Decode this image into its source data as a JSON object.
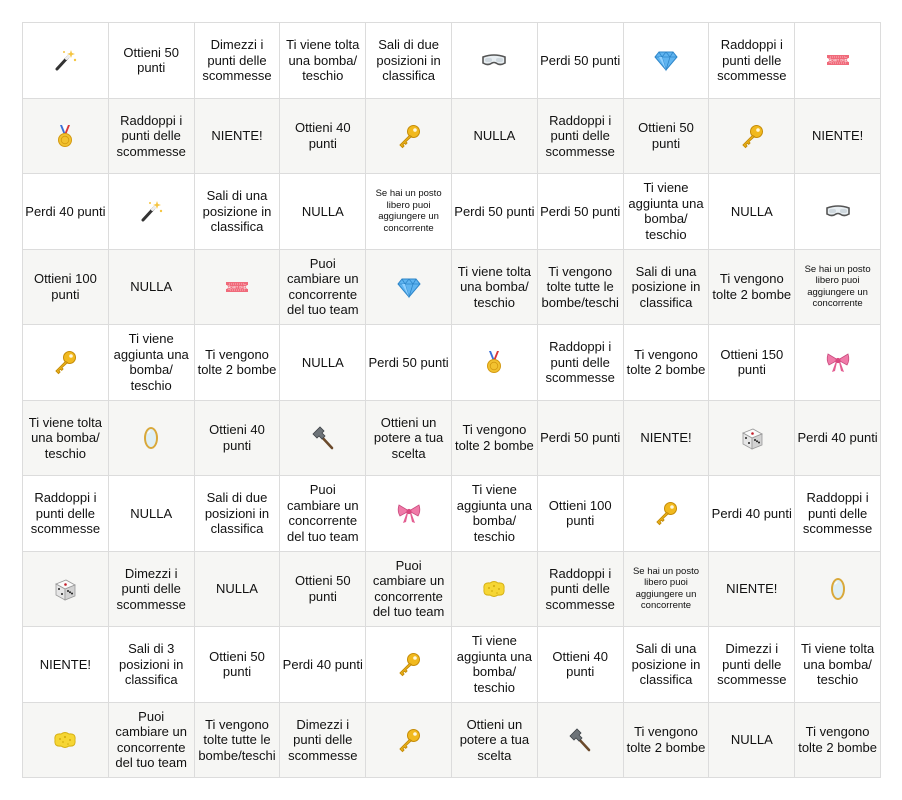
{
  "rows": [
    [
      {
        "icon": "wand-icon"
      },
      {
        "text": "Ottieni 50 punti"
      },
      {
        "text": "Dimezzi i punti delle scommesse"
      },
      {
        "text": "Ti viene tolta una bomba/ teschio"
      },
      {
        "text": "Sali di due posizioni in classifica"
      },
      {
        "icon": "goggles-icon"
      },
      {
        "text": "Perdi 50 punti"
      },
      {
        "icon": "gem-icon"
      },
      {
        "text": "Raddoppi i punti delle scommesse"
      },
      {
        "icon": "ticket-icon",
        "label": "ADMIT ONE"
      }
    ],
    [
      {
        "icon": "medal-icon"
      },
      {
        "text": "Raddoppi i punti delle scommesse"
      },
      {
        "text": "NIENTE!"
      },
      {
        "text": "Ottieni 40 punti"
      },
      {
        "icon": "key-icon"
      },
      {
        "text": "NULLA"
      },
      {
        "text": "Raddoppi i punti delle scommesse"
      },
      {
        "text": "Ottieni 50 punti"
      },
      {
        "icon": "key-icon"
      },
      {
        "text": "NIENTE!"
      }
    ],
    [
      {
        "text": "Perdi 40 punti"
      },
      {
        "icon": "wand-icon"
      },
      {
        "text": "Sali di una posizione in classifica"
      },
      {
        "text": "NULLA"
      },
      {
        "text": "Se hai un posto libero puoi aggiungere un concorrente",
        "small": true
      },
      {
        "text": "Perdi 50 punti"
      },
      {
        "text": "Perdi 50 punti"
      },
      {
        "text": "Ti viene aggiunta una bomba/ teschio"
      },
      {
        "text": "NULLA"
      },
      {
        "icon": "goggles-icon"
      }
    ],
    [
      {
        "text": "Ottieni 100 punti"
      },
      {
        "text": "NULLA"
      },
      {
        "icon": "ticket-icon",
        "label": "ADMIT ONE"
      },
      {
        "text": "Puoi cambiare un concorrente del tuo team"
      },
      {
        "icon": "gem-icon"
      },
      {
        "text": "Ti viene tolta una bomba/ teschio"
      },
      {
        "text": "Ti vengono tolte tutte le bombe/teschi"
      },
      {
        "text": "Sali di una posizione in classifica"
      },
      {
        "text": "Ti vengono tolte 2 bombe"
      },
      {
        "text": "Se hai un posto libero puoi aggiungere un concorrente",
        "small": true
      }
    ],
    [
      {
        "icon": "key-icon"
      },
      {
        "text": "Ti viene aggiunta una bomba/ teschio"
      },
      {
        "text": "Ti vengono tolte 2 bombe"
      },
      {
        "text": "NULLA"
      },
      {
        "text": "Perdi 50 punti"
      },
      {
        "icon": "medal-icon"
      },
      {
        "text": "Raddoppi i punti delle scommesse"
      },
      {
        "text": "Ti vengono tolte 2 bombe"
      },
      {
        "text": "Ottieni 150 punti"
      },
      {
        "icon": "ribbon-icon"
      }
    ],
    [
      {
        "text": "Ti viene tolta una bomba/ teschio"
      },
      {
        "icon": "mirror-icon"
      },
      {
        "text": "Ottieni 40 punti"
      },
      {
        "icon": "hammer-icon"
      },
      {
        "text": "Ottieni un potere a tua scelta"
      },
      {
        "text": "Ti vengono tolte 2 bombe"
      },
      {
        "text": "Perdi 50 punti"
      },
      {
        "text": "NIENTE!"
      },
      {
        "icon": "dice-icon"
      },
      {
        "text": "Perdi 40 punti"
      }
    ],
    [
      {
        "text": "Raddoppi i punti delle scommesse"
      },
      {
        "text": "NULLA"
      },
      {
        "text": "Sali di due posizioni in classifica"
      },
      {
        "text": "Puoi cambiare un concorrente del tuo team"
      },
      {
        "icon": "ribbon-icon"
      },
      {
        "text": "Ti viene aggiunta una bomba/ teschio"
      },
      {
        "text": "Ottieni 100 punti"
      },
      {
        "icon": "key-icon"
      },
      {
        "text": "Perdi 40 punti"
      },
      {
        "text": "Raddoppi i punti delle scommesse"
      }
    ],
    [
      {
        "icon": "dice-icon"
      },
      {
        "text": "Dimezzi i punti delle scommesse"
      },
      {
        "text": "NULLA"
      },
      {
        "text": "Ottieni 50 punti"
      },
      {
        "text": "Puoi cambiare un concorrente del tuo team"
      },
      {
        "icon": "sponge-icon"
      },
      {
        "text": "Raddoppi i punti delle scommesse"
      },
      {
        "text": "Se hai un posto libero puoi aggiungere un concorrente",
        "small": true
      },
      {
        "text": "NIENTE!"
      },
      {
        "icon": "mirror-icon"
      }
    ],
    [
      {
        "text": "NIENTE!"
      },
      {
        "text": "Sali di 3 posizioni in classifica"
      },
      {
        "text": "Ottieni 50 punti"
      },
      {
        "text": "Perdi 40 punti"
      },
      {
        "icon": "key-icon"
      },
      {
        "text": "Ti viene aggiunta una bomba/ teschio"
      },
      {
        "text": "Ottieni 40 punti"
      },
      {
        "text": "Sali di una posizione in classifica"
      },
      {
        "text": "Dimezzi i punti delle scommesse"
      },
      {
        "text": "Ti viene tolta una bomba/ teschio"
      }
    ],
    [
      {
        "icon": "sponge-icon"
      },
      {
        "text": "Puoi cambiare un concorrente del tuo team"
      },
      {
        "text": "Ti vengono tolte tutte le bombe/teschi"
      },
      {
        "text": "Dimezzi i punti delle scommesse"
      },
      {
        "icon": "key-icon"
      },
      {
        "text": "Ottieni un potere a tua scelta"
      },
      {
        "icon": "hammer-icon"
      },
      {
        "text": "Ti vengono tolte 2 bombe"
      },
      {
        "text": "NULLA"
      },
      {
        "text": "Ti vengono tolte 2 bombe"
      }
    ]
  ]
}
